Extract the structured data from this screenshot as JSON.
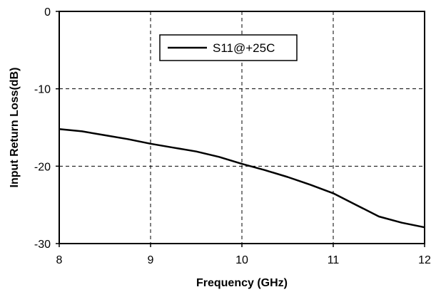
{
  "chart_data": {
    "type": "line",
    "title": "",
    "xlabel": "Frequency (GHz)",
    "ylabel": "Input Return Loss(dB)",
    "xlim": [
      8,
      12
    ],
    "ylim": [
      -30,
      0
    ],
    "xticks": [
      8,
      9,
      10,
      11,
      12
    ],
    "yticks": [
      0,
      -10,
      -20,
      -30
    ],
    "xtick_labels": [
      "8",
      "9",
      "10",
      "11",
      "12"
    ],
    "ytick_labels": [
      "0",
      "-10",
      "-20",
      "-30"
    ],
    "grid": true,
    "grid_style": "dashed",
    "legend_position": "top-center",
    "series": [
      {
        "name": "S11@+25C",
        "color": "#000000",
        "x": [
          8.0,
          8.25,
          8.5,
          8.75,
          9.0,
          9.25,
          9.5,
          9.75,
          10.0,
          10.25,
          10.5,
          10.75,
          11.0,
          11.25,
          11.5,
          11.75,
          12.0
        ],
        "y": [
          -15.2,
          -15.5,
          -16.0,
          -16.5,
          -17.1,
          -17.6,
          -18.1,
          -18.8,
          -19.7,
          -20.5,
          -21.4,
          -22.4,
          -23.5,
          -25.0,
          -26.5,
          -27.3,
          -27.9
        ]
      }
    ]
  }
}
